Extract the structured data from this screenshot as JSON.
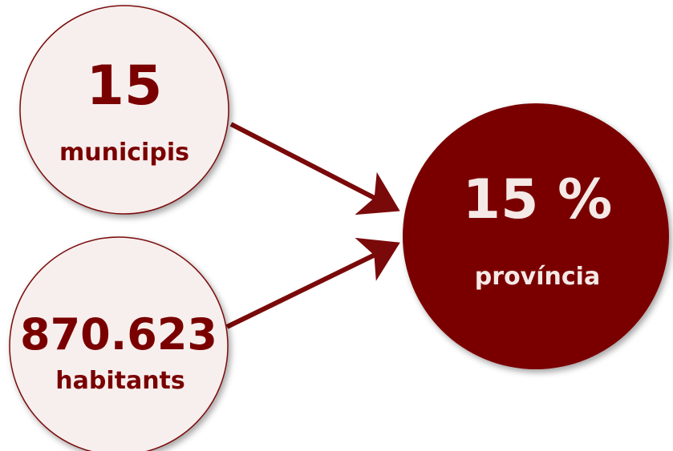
{
  "nodes": [
    {
      "value": "15",
      "label": "municipis"
    },
    {
      "value": "870.623",
      "label": "habitants"
    },
    {
      "value": "15 %",
      "label": "província"
    }
  ]
}
